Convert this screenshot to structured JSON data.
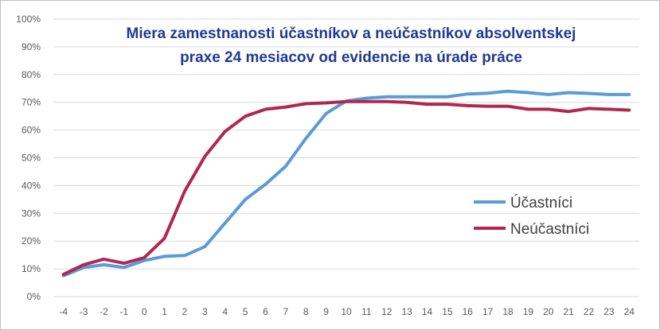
{
  "chart_data": {
    "type": "line",
    "title_lines": [
      "Miera zamestnanosti účastníkov a neúčastníkov absolventskej",
      "praxe 24 mesiacov od evidencie na úrade práce"
    ],
    "x": [
      "-4",
      "-3",
      "-2",
      "-1",
      "0",
      "1",
      "2",
      "3",
      "4",
      "5",
      "6",
      "7",
      "8",
      "9",
      "10",
      "11",
      "12",
      "13",
      "14",
      "15",
      "16",
      "17",
      "18",
      "19",
      "20",
      "21",
      "22",
      "23",
      "24"
    ],
    "y_ticks": [
      "0%",
      "10%",
      "20%",
      "30%",
      "40%",
      "50%",
      "60%",
      "70%",
      "80%",
      "90%",
      "100%"
    ],
    "ylim": [
      0,
      100
    ],
    "grid": true,
    "legend_position": "right",
    "series": [
      {
        "name": "Účastníci",
        "color": "#5b9bd5",
        "values": [
          7.5,
          10.5,
          11.5,
          10.5,
          13,
          14.5,
          14.8,
          18,
          26.5,
          35,
          40.5,
          47,
          57,
          66,
          70.5,
          71.5,
          72,
          72,
          72,
          72,
          73,
          73.3,
          74,
          73.5,
          72.8,
          73.5,
          73.2,
          72.8,
          72.8
        ]
      },
      {
        "name": "Neúčastníci",
        "color": "#b0284f",
        "values": [
          8,
          11.5,
          13.5,
          12,
          14,
          21,
          38,
          50.5,
          59.5,
          65,
          67.5,
          68.3,
          69.5,
          69.8,
          70.3,
          70.3,
          70.3,
          70,
          69.3,
          69.3,
          68.8,
          68.6,
          68.6,
          67.5,
          67.5,
          66.7,
          67.8,
          67.5,
          67.2
        ]
      }
    ]
  }
}
